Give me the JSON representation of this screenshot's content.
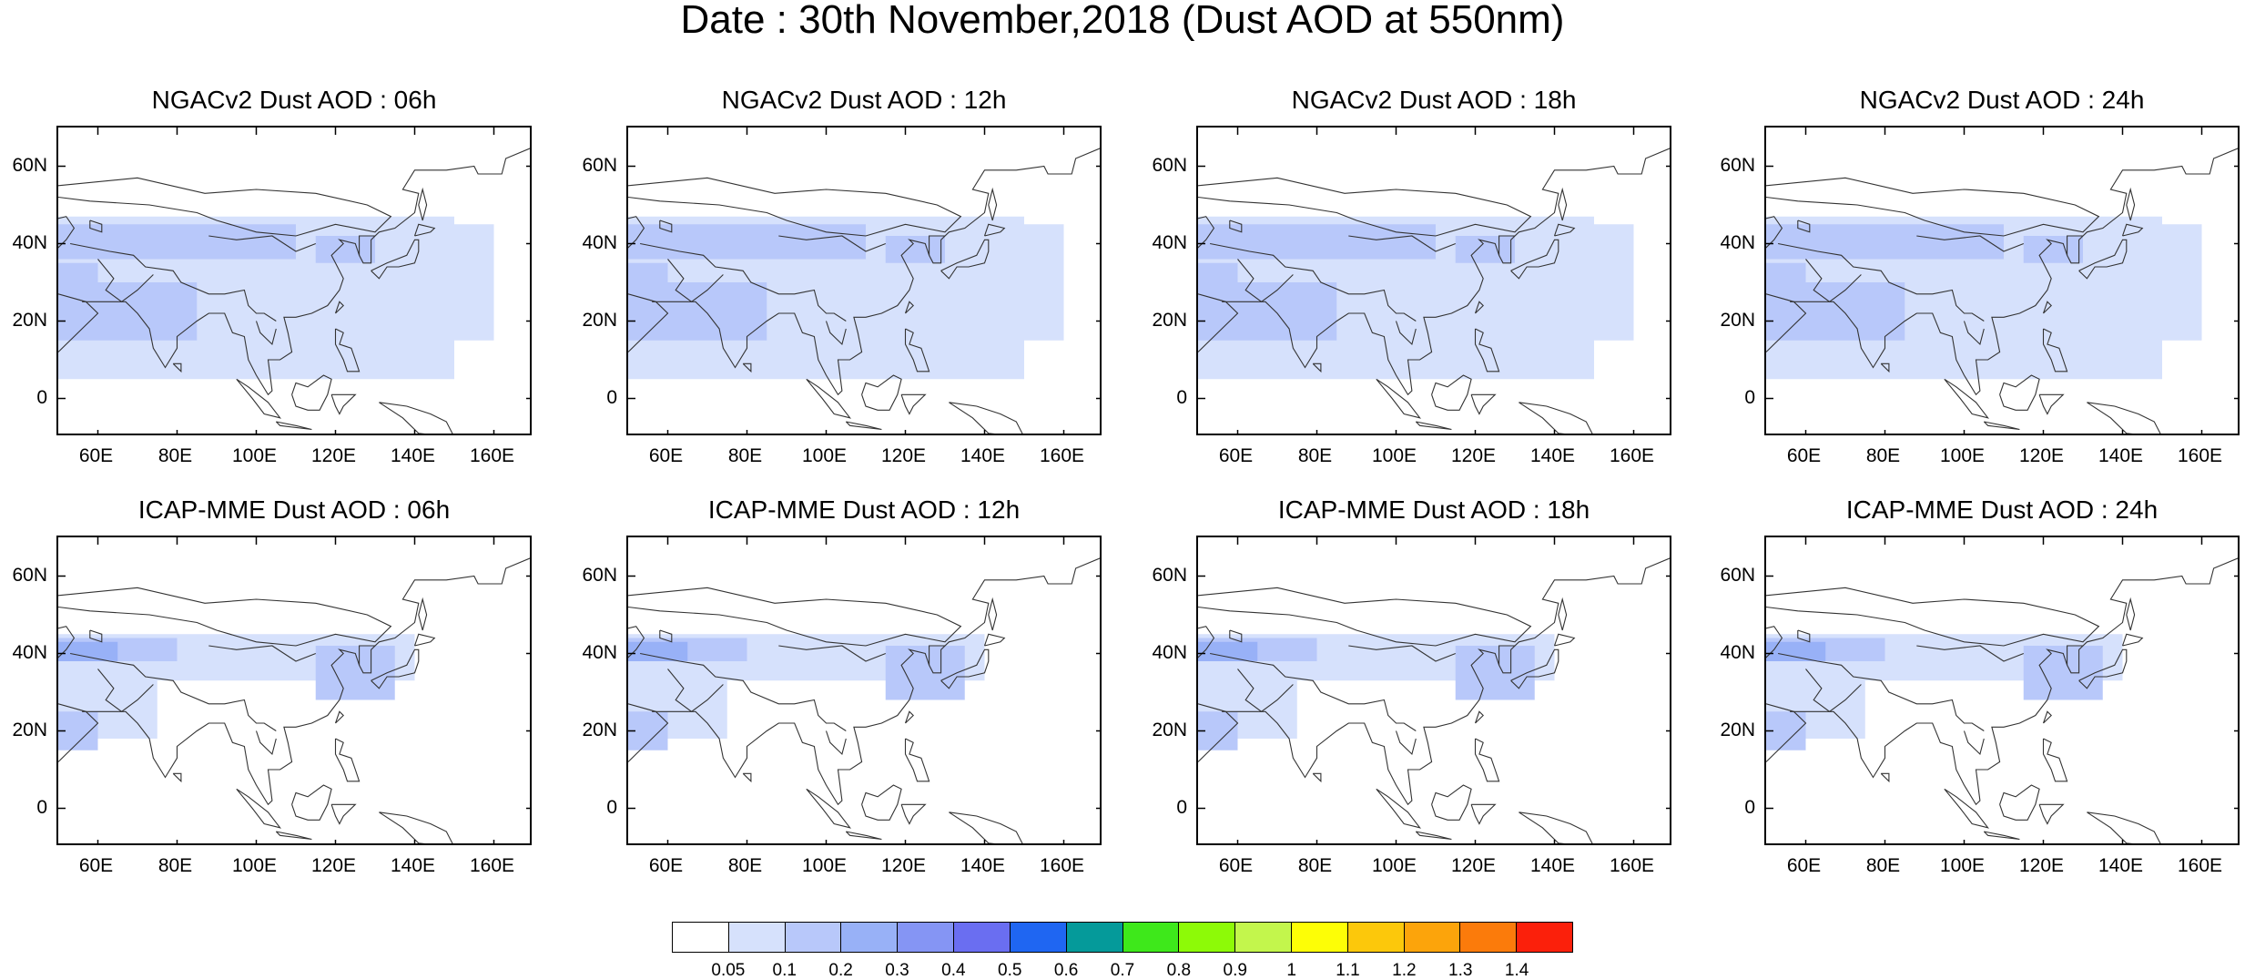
{
  "title": "Date : 30th November,2018 (Dust AOD at 550nm)",
  "map": {
    "lon_range": [
      50,
      170
    ],
    "lat_range": [
      -10,
      70
    ],
    "lat_ticks": [
      {
        "v": 60,
        "label": "60N"
      },
      {
        "v": 40,
        "label": "40N"
      },
      {
        "v": 20,
        "label": "20N"
      },
      {
        "v": 0,
        "label": "0"
      }
    ],
    "lon_ticks": [
      {
        "v": 60,
        "label": "60E"
      },
      {
        "v": 80,
        "label": "80E"
      },
      {
        "v": 100,
        "label": "100E"
      },
      {
        "v": 120,
        "label": "120E"
      },
      {
        "v": 140,
        "label": "140E"
      },
      {
        "v": 160,
        "label": "160E"
      }
    ]
  },
  "panels": [
    {
      "title": "NGACv2 Dust AOD : 06h",
      "model": "NGACv2",
      "hour": "06h"
    },
    {
      "title": "NGACv2 Dust AOD : 12h",
      "model": "NGACv2",
      "hour": "12h"
    },
    {
      "title": "NGACv2 Dust AOD : 18h",
      "model": "NGACv2",
      "hour": "18h"
    },
    {
      "title": "NGACv2 Dust AOD : 24h",
      "model": "NGACv2",
      "hour": "24h"
    },
    {
      "title": "ICAP-MME Dust AOD : 06h",
      "model": "ICAP-MME",
      "hour": "06h"
    },
    {
      "title": "ICAP-MME Dust AOD : 12h",
      "model": "ICAP-MME",
      "hour": "12h"
    },
    {
      "title": "ICAP-MME Dust AOD : 18h",
      "model": "ICAP-MME",
      "hour": "18h"
    },
    {
      "title": "ICAP-MME Dust AOD : 24h",
      "model": "ICAP-MME",
      "hour": "24h"
    }
  ],
  "colorbar": {
    "colors": [
      "#ffffff",
      "#d6e1fc",
      "#b8c8fa",
      "#98b1f7",
      "#8595f4",
      "#6a6ef1",
      "#1f66f2",
      "#059a9a",
      "#3ee81b",
      "#8dfa07",
      "#c3f64c",
      "#fdfe06",
      "#fcc80b",
      "#fca40b",
      "#fb7b0b",
      "#fb200b"
    ],
    "labels": [
      "0.05",
      "0.1",
      "0.2",
      "0.3",
      "0.4",
      "0.5",
      "0.6",
      "0.7",
      "0.8",
      "0.9",
      "1",
      "1.1",
      "1.2",
      "1.3",
      "1.4"
    ]
  },
  "dust_fields": {
    "NGACv2": [
      {
        "lon": [
          50,
          150
        ],
        "lat": [
          5,
          47
        ],
        "level": 1
      },
      {
        "lon": [
          50,
          110
        ],
        "lat": [
          36,
          45
        ],
        "level": 2
      },
      {
        "lon": [
          50,
          60
        ],
        "lat": [
          15,
          35
        ],
        "level": 2
      },
      {
        "lon": [
          60,
          85
        ],
        "lat": [
          15,
          30
        ],
        "level": 2
      },
      {
        "lon": [
          115,
          130
        ],
        "lat": [
          35,
          42
        ],
        "level": 2
      },
      {
        "lon": [
          140,
          160
        ],
        "lat": [
          15,
          45
        ],
        "level": 1
      }
    ],
    "ICAP-MME": [
      {
        "lon": [
          50,
          140
        ],
        "lat": [
          33,
          45
        ],
        "level": 1
      },
      {
        "lon": [
          50,
          75
        ],
        "lat": [
          18,
          35
        ],
        "level": 1
      },
      {
        "lon": [
          50,
          80
        ],
        "lat": [
          38,
          44
        ],
        "level": 2
      },
      {
        "lon": [
          50,
          65
        ],
        "lat": [
          38,
          43
        ],
        "level": 3
      },
      {
        "lon": [
          115,
          135
        ],
        "lat": [
          28,
          42
        ],
        "level": 2
      },
      {
        "lon": [
          50,
          60
        ],
        "lat": [
          15,
          25
        ],
        "level": 2
      }
    ]
  }
}
